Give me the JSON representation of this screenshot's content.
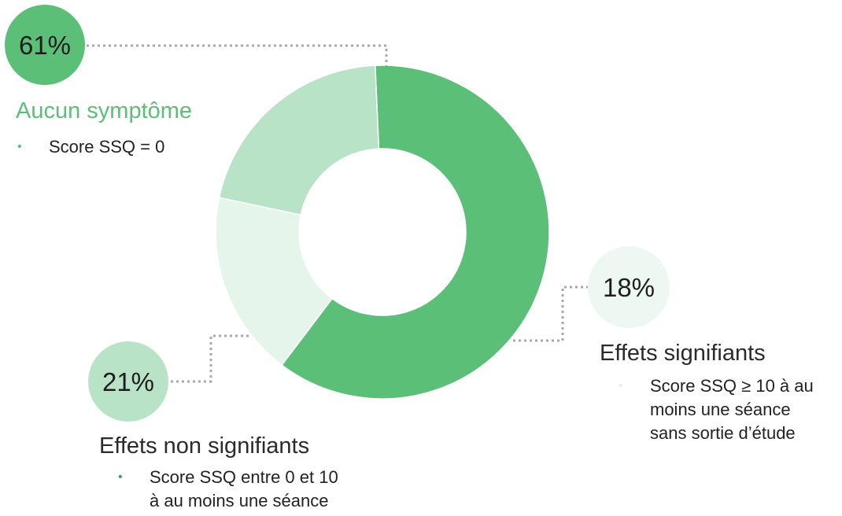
{
  "chart_data": {
    "type": "pie",
    "variant": "donut",
    "title": "",
    "slices": [
      {
        "percent_label": "61%",
        "value": 61,
        "color": "#5cbf78",
        "label": "Aucun symptôme",
        "label_color": "#5cbf78",
        "bullet_color": "#5cbf78",
        "bullet": "Score SSQ = 0",
        "badge_color": "#5cbf78"
      },
      {
        "percent_label": "18%",
        "value": 18,
        "color": "#e6f5ec",
        "label": "Effets signifiants",
        "label_color": "#2b2b2b",
        "bullet_color": "#e3f1e8",
        "bullet": "Score SSQ ≥ 10 à au\nmoins une séance\nsans sortie d’étude",
        "badge_color": "#eef8f2"
      },
      {
        "percent_label": "21%",
        "value": 21,
        "color": "#b9e3c7",
        "label": "Effets non signifiants",
        "label_color": "#2b2b2b",
        "bullet_color": "#3f9e68",
        "bullet": "Score SSQ entre 0 et 10\nà au moins une séance",
        "badge_color": "#b9e3c7"
      }
    ],
    "connector_color": "#a8a8a8",
    "bullet_symbol": "•"
  }
}
